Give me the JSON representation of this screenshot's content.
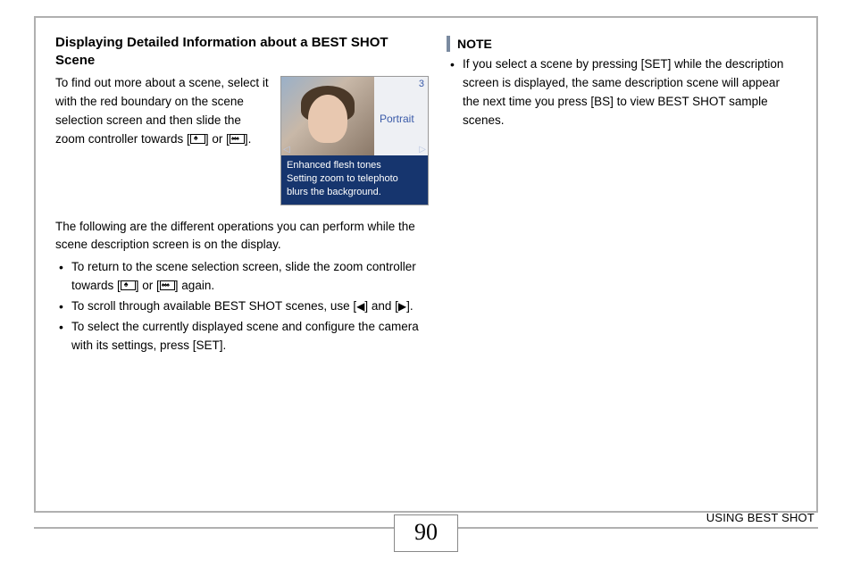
{
  "section_title": "Displaying Detailed Information about a BEST SHOT Scene",
  "intro_1": "To find out more about a scene, select it with the red boundary on the scene selection screen and then slide the zoom controller towards [",
  "intro_2": "] or [",
  "intro_3": "].",
  "preview": {
    "number": "3",
    "label": "Portrait",
    "desc_l1": "Enhanced flesh tones",
    "desc_l2": "Setting zoom to telephoto",
    "desc_l3": "blurs the background."
  },
  "ops_intro": "The following are the different operations you can perform while the scene description screen is on the display.",
  "op1_a": "To return to the scene selection screen, slide the zoom controller towards [",
  "op1_b": "] or [",
  "op1_c": "] again.",
  "op2_a": "To scroll through available BEST SHOT scenes, use [",
  "op2_b": "] and [",
  "op2_c": "].",
  "op3": "To select the currently displayed scene and configure the camera with its settings, press [SET].",
  "note_label": "NOTE",
  "note_text": "If you select a scene by pressing [SET] while the description screen is displayed, the same description scene will appear the next time you press [BS] to view BEST SHOT sample scenes.",
  "page_number": "90",
  "footer_text": "USING BEST SHOT"
}
